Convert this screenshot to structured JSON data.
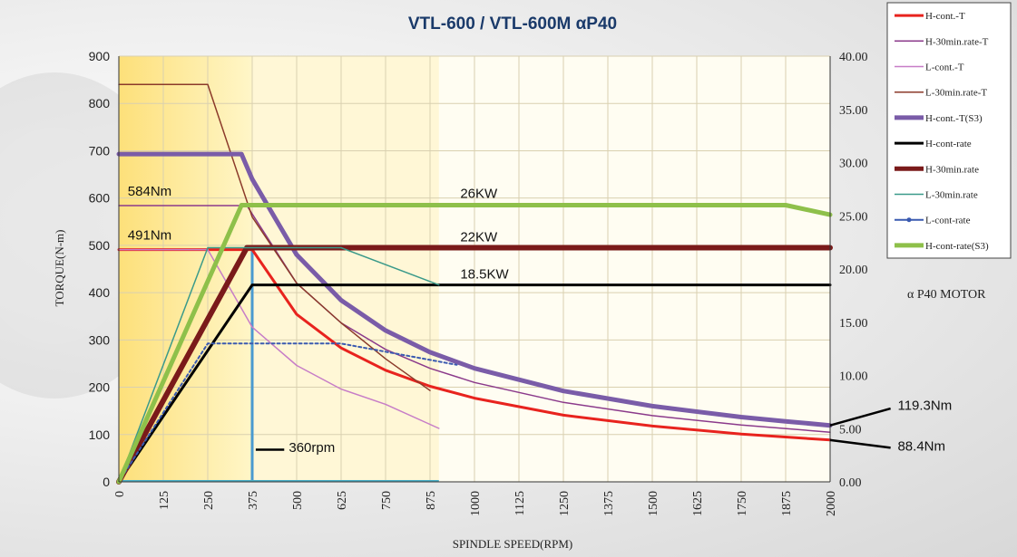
{
  "chart_data": {
    "type": "line",
    "title": "VTL-600 / VTL-600M  αP40",
    "xlabel": "SPINDLE SPEED(RPM)",
    "ylabel": "TORQUE(N-m)",
    "xlim": [
      0,
      2000
    ],
    "ylim": [
      0,
      900
    ],
    "y2lim": [
      0,
      40
    ],
    "x_ticks": [
      "0",
      "125",
      "250",
      "375",
      "500",
      "625",
      "750",
      "875",
      "1000",
      "1125",
      "1250",
      "1375",
      "1500",
      "1625",
      "1750",
      "1875",
      "2000"
    ],
    "y_ticks": [
      "0",
      "100",
      "200",
      "300",
      "400",
      "500",
      "600",
      "700",
      "800",
      "900"
    ],
    "y2_ticks": [
      "0.00",
      "5.00",
      "10.00",
      "15.00",
      "20.00",
      "25.00",
      "30.00",
      "35.00",
      "40.00"
    ],
    "grid": true,
    "legend_position": "right",
    "motor_label": "α P40 MOTOR",
    "series": [
      {
        "name": "H-cont.-T",
        "axis": "left",
        "color": "#e8231e",
        "width": 3,
        "x": [
          0,
          375,
          500,
          625,
          750,
          875,
          1000,
          1250,
          1500,
          1750,
          2000
        ],
        "y": [
          491,
          491,
          354,
          283,
          236,
          202,
          177,
          141,
          118,
          101,
          88.4
        ]
      },
      {
        "name": "H-30min.rate-T",
        "axis": "left",
        "color": "#8b3a8b",
        "width": 1.5,
        "x": [
          0,
          360,
          500,
          625,
          750,
          875,
          1000,
          1250,
          1500,
          1750,
          2000
        ],
        "y": [
          584,
          584,
          420,
          336,
          280,
          240,
          210,
          168,
          140,
          120,
          105
        ]
      },
      {
        "name": "L-cont.-T",
        "axis": "left",
        "color": "#c77dc7",
        "width": 1.5,
        "x": [
          0,
          250,
          375,
          500,
          625,
          750,
          900
        ],
        "y": [
          491,
          491,
          327,
          246,
          196,
          164,
          113
        ]
      },
      {
        "name": "L-30min.rate-T",
        "axis": "left",
        "color": "#8b3a2a",
        "width": 1.5,
        "x": [
          0,
          250,
          375,
          500,
          625,
          750,
          875
        ],
        "y": [
          840,
          840,
          560,
          420,
          336,
          260,
          193
        ]
      },
      {
        "name": "H-cont.-T(S3)",
        "axis": "left",
        "color": "#7a5ca8",
        "width": 5,
        "x": [
          0,
          345,
          375,
          500,
          625,
          750,
          875,
          1000,
          1250,
          1500,
          1750,
          1875,
          2000
        ],
        "y": [
          693,
          693,
          640,
          480,
          384,
          320,
          274,
          240,
          192,
          160,
          137,
          128,
          119.3
        ]
      },
      {
        "name": "H-cont-rate",
        "axis": "right",
        "color": "#000000",
        "width": 3,
        "x": [
          0,
          375,
          2000
        ],
        "y": [
          0,
          18.5,
          18.5
        ]
      },
      {
        "name": "H-30min.rate",
        "axis": "right",
        "color": "#7a1a1a",
        "width": 6,
        "x": [
          0,
          360,
          2000
        ],
        "y": [
          0,
          22,
          22
        ]
      },
      {
        "name": "L-30min.rate",
        "axis": "right",
        "color": "#3a9a8a",
        "width": 1.5,
        "x": [
          0,
          250,
          625,
          900
        ],
        "y": [
          0,
          22,
          22,
          18.5
        ]
      },
      {
        "name": "L-cont-rate",
        "axis": "right",
        "color": "#3a5ab0",
        "width": 2,
        "x": [
          0,
          250,
          625,
          950
        ],
        "y": [
          0,
          13,
          13,
          11
        ]
      },
      {
        "name": "H-cont-rate(S3)",
        "axis": "right",
        "color": "#8ec04a",
        "width": 5,
        "x": [
          0,
          345,
          375,
          1875,
          2000
        ],
        "y": [
          0,
          26,
          26,
          26,
          25.1
        ]
      }
    ],
    "annotations": [
      {
        "text": "584Nm",
        "x": 25,
        "y": 605,
        "axis": "left"
      },
      {
        "text": "491Nm",
        "x": 25,
        "y": 512,
        "axis": "left"
      },
      {
        "text": "26KW",
        "x": 960,
        "y": 26.7,
        "axis": "right"
      },
      {
        "text": "22KW",
        "x": 960,
        "y": 22.6,
        "axis": "right"
      },
      {
        "text": "18.5KW",
        "x": 960,
        "y": 19.1,
        "axis": "right"
      },
      {
        "text": "360rpm",
        "x": 478,
        "y": 63,
        "axis": "left"
      },
      {
        "text": "119.3Nm",
        "x": 2190,
        "y": 152,
        "axis": "left"
      },
      {
        "text": "88.4Nm",
        "x": 2190,
        "y": 66,
        "axis": "left"
      }
    ]
  }
}
